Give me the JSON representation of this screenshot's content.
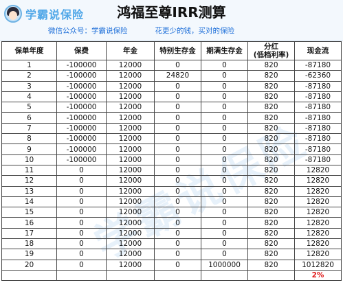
{
  "header": {
    "logo_text": "学霸说保险",
    "title": "鸿福至尊IRR测算",
    "subtitle_left": "微信公众号：学霸说保险",
    "subtitle_right": "花更少的钱，买对的保险",
    "watermark": "学霸说保险"
  },
  "table": {
    "headers": [
      "保单年度",
      "保费",
      "年金",
      "特别生存金",
      "期满生存金",
      "分红\n(低档利率)",
      "现金流"
    ],
    "rows": [
      [
        "1",
        "-100000",
        "12000",
        "0",
        "0",
        "820",
        "-87180"
      ],
      [
        "2",
        "-100000",
        "12000",
        "24820",
        "0",
        "820",
        "-62360"
      ],
      [
        "3",
        "-100000",
        "12000",
        "0",
        "0",
        "820",
        "-87180"
      ],
      [
        "4",
        "-100000",
        "12000",
        "0",
        "0",
        "820",
        "-87180"
      ],
      [
        "5",
        "-100000",
        "12000",
        "0",
        "0",
        "820",
        "-87180"
      ],
      [
        "6",
        "-100000",
        "12000",
        "0",
        "0",
        "820",
        "-87180"
      ],
      [
        "7",
        "-100000",
        "12000",
        "0",
        "0",
        "820",
        "-87180"
      ],
      [
        "8",
        "-100000",
        "12000",
        "0",
        "0",
        "820",
        "-87180"
      ],
      [
        "9",
        "-100000",
        "12000",
        "0",
        "0",
        "820",
        "-87180"
      ],
      [
        "10",
        "-100000",
        "12000",
        "0",
        "0",
        "820",
        "-87180"
      ],
      [
        "11",
        "0",
        "12000",
        "0",
        "0",
        "820",
        "12820"
      ],
      [
        "12",
        "0",
        "12000",
        "0",
        "0",
        "820",
        "12820"
      ],
      [
        "13",
        "0",
        "12000",
        "0",
        "0",
        "820",
        "12820"
      ],
      [
        "14",
        "0",
        "12000",
        "0",
        "0",
        "820",
        "12820"
      ],
      [
        "15",
        "0",
        "12000",
        "0",
        "0",
        "820",
        "12820"
      ],
      [
        "16",
        "0",
        "12000",
        "0",
        "0",
        "820",
        "12820"
      ],
      [
        "17",
        "0",
        "12000",
        "0",
        "0",
        "820",
        "12820"
      ],
      [
        "18",
        "0",
        "12000",
        "0",
        "0",
        "820",
        "12820"
      ],
      [
        "19",
        "0",
        "12000",
        "0",
        "0",
        "820",
        "12820"
      ],
      [
        "20",
        "0",
        "12000",
        "0",
        "1000000",
        "820",
        "1012820"
      ]
    ],
    "irr": "2%"
  }
}
